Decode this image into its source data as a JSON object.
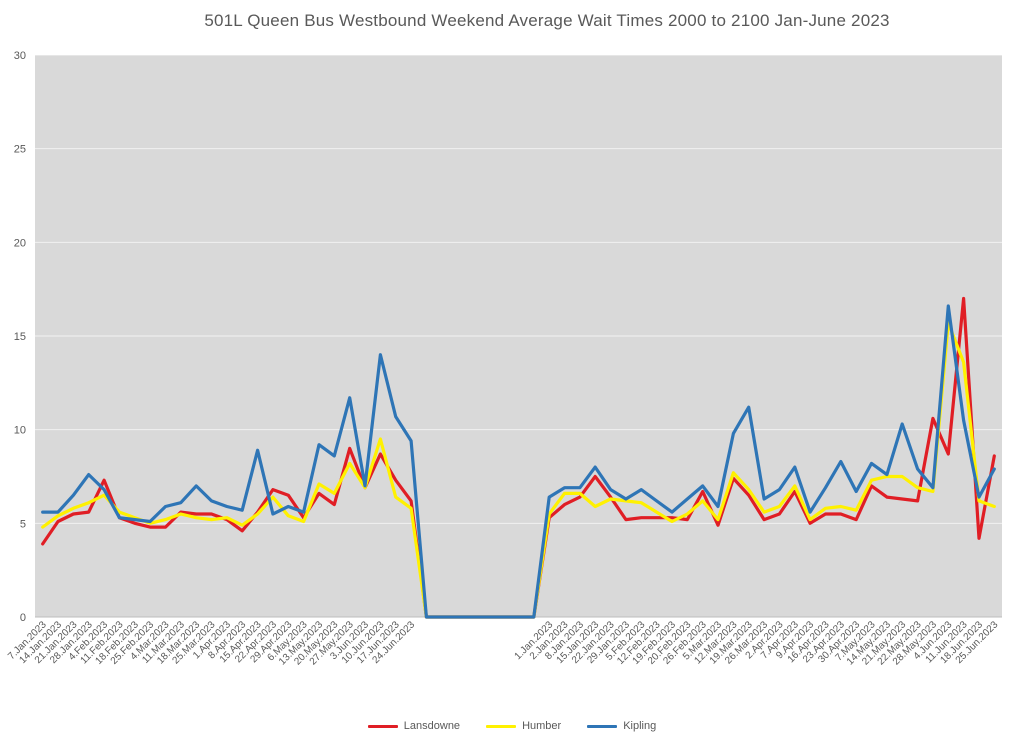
{
  "chart": {
    "plot_bg": "#d9d9d9",
    "gridline_color": "#ffffff",
    "axis_line_color": "#bdbdbd",
    "axis_text_color": "#595959",
    "title_color": "#595959"
  },
  "chart_data": {
    "type": "line",
    "title": "501L Queen Bus Westbound Weekend Average Wait Times 2000 to 2100 Jan-June 2023",
    "xlabel": "",
    "ylabel": "",
    "ylim": [
      0,
      30
    ],
    "yticks": [
      0,
      5,
      10,
      15,
      20,
      25,
      30
    ],
    "grid": true,
    "legend_position": "bottom",
    "categories": [
      "7.Jan.2023",
      "14.Jan.2023",
      "21.Jan.2023",
      "28.Jan.2023",
      "4.Feb.2023",
      "11.Feb.2023",
      "18.Feb.2023",
      "25.Feb.2023",
      "4.Mar.2023",
      "11.Mar.2023",
      "18.Mar.2023",
      "25.Mar.2023",
      "1.Apr.2023",
      "8.Apr.2023",
      "15.Apr.2023",
      "22.Apr.2023",
      "29.Apr.2023",
      "6.May.2023",
      "13.May.2023",
      "20.May.2023",
      "27.May.2023",
      "3.Jun.2023",
      "10.Jun.2023",
      "17.Jun.2023",
      "24.Jun.2023",
      "",
      "",
      "",
      "",
      "",
      "",
      "",
      "",
      "1.Jan.2023",
      "2.Jan.2023",
      "8.Jan.2023",
      "15.Jan.2023",
      "22.Jan.2023",
      "29.Jan.2023",
      "5.Feb.2023",
      "12.Feb.2023",
      "19.Feb.2023",
      "20.Feb.2023",
      "26.Feb.2023",
      "5.Mar.2023",
      "12.Mar.2023",
      "19.Mar.2023",
      "26.Mar.2023",
      "2.Apr.2023",
      "7.Apr.2023",
      "9.Apr.2023",
      "16.Apr.2023",
      "23.Apr.2023",
      "30.Apr.2023",
      "7.May.2023",
      "14.May.2023",
      "21.May.2023",
      "22.May.2023",
      "28.May.2023",
      "4.Jun.2023",
      "11.Jun.2023",
      "18.Jun.2023",
      "25.Jun.2023"
    ],
    "series": [
      {
        "name": "Lansdowne",
        "color": "#e01e25",
        "values": [
          3.9,
          5.1,
          5.5,
          5.6,
          7.3,
          5.3,
          5.0,
          4.8,
          4.8,
          5.6,
          5.5,
          5.5,
          5.2,
          4.6,
          5.6,
          6.8,
          6.5,
          5.3,
          6.6,
          6.0,
          9.0,
          6.9,
          8.7,
          7.3,
          6.2,
          0,
          0,
          0,
          0,
          0,
          0,
          0,
          0,
          5.3,
          6.0,
          6.4,
          7.5,
          6.4,
          5.2,
          5.3,
          5.3,
          5.3,
          5.2,
          6.7,
          4.9,
          7.4,
          6.5,
          5.2,
          5.5,
          6.7,
          5.0,
          5.5,
          5.5,
          5.2,
          7.0,
          6.4,
          6.3,
          6.2,
          10.6,
          8.7,
          17.0,
          4.2,
          8.6
        ]
      },
      {
        "name": "Humber",
        "color": "#fff100",
        "values": [
          4.8,
          5.4,
          5.8,
          6.1,
          6.5,
          5.6,
          5.3,
          5.0,
          5.2,
          5.5,
          5.3,
          5.2,
          5.3,
          4.9,
          5.5,
          6.4,
          5.4,
          5.1,
          7.1,
          6.6,
          8.2,
          6.9,
          9.5,
          6.4,
          5.8,
          0,
          0,
          0,
          0,
          0,
          0,
          0,
          0,
          5.5,
          6.6,
          6.6,
          5.9,
          6.3,
          6.2,
          6.1,
          5.6,
          5.1,
          5.5,
          6.2,
          5.2,
          7.7,
          6.8,
          5.6,
          5.9,
          7.0,
          5.2,
          5.8,
          5.9,
          5.7,
          7.3,
          7.5,
          7.5,
          6.9,
          6.7,
          15.7,
          13.6,
          6.2,
          5.9
        ]
      },
      {
        "name": "Kipling",
        "color": "#2e75b6",
        "values": [
          5.6,
          5.6,
          6.5,
          7.6,
          6.8,
          5.3,
          5.2,
          5.1,
          5.9,
          6.1,
          7.0,
          6.2,
          5.9,
          5.7,
          8.9,
          5.5,
          5.9,
          5.6,
          9.2,
          8.6,
          11.7,
          7.0,
          14.0,
          10.7,
          9.4,
          0,
          0,
          0,
          0,
          0,
          0,
          0,
          0,
          6.4,
          6.9,
          6.9,
          8.0,
          6.8,
          6.3,
          6.8,
          6.2,
          5.6,
          6.3,
          7.0,
          5.9,
          9.8,
          11.2,
          6.3,
          6.8,
          8.0,
          5.6,
          6.9,
          8.3,
          6.7,
          8.2,
          7.6,
          10.3,
          7.9,
          6.9,
          16.6,
          10.5,
          6.4,
          7.9
        ]
      }
    ]
  }
}
